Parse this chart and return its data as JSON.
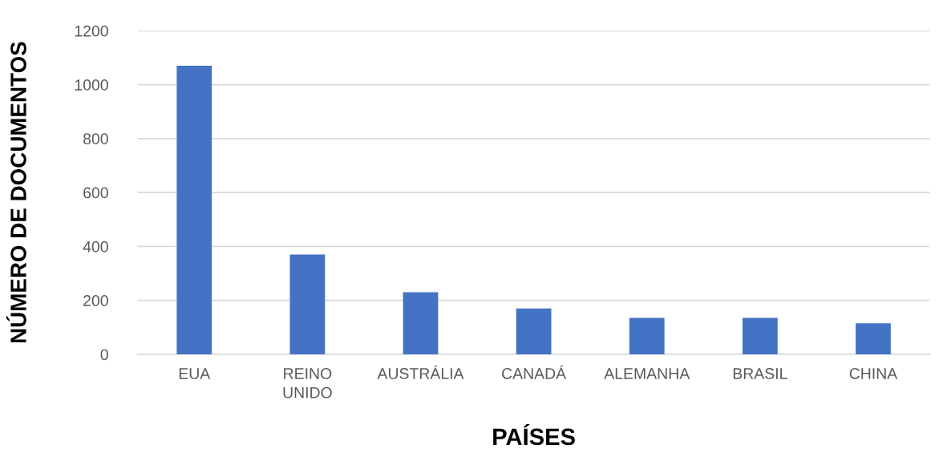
{
  "chart_data": {
    "type": "bar",
    "xlabel": "PAÍSES",
    "ylabel": "NÚMERO DE DOCUMENTOS",
    "categories": [
      "EUA",
      "REINO UNIDO",
      "AUSTRÁLIA",
      "CANADÁ",
      "ALEMANHA",
      "BRASIL",
      "CHINA"
    ],
    "values": [
      1070,
      370,
      230,
      170,
      135,
      135,
      115
    ],
    "color": "#4472c4",
    "ylim": [
      0,
      1200
    ],
    "yticks": [
      0,
      200,
      400,
      600,
      800,
      1000,
      1200
    ],
    "grid": "y"
  }
}
